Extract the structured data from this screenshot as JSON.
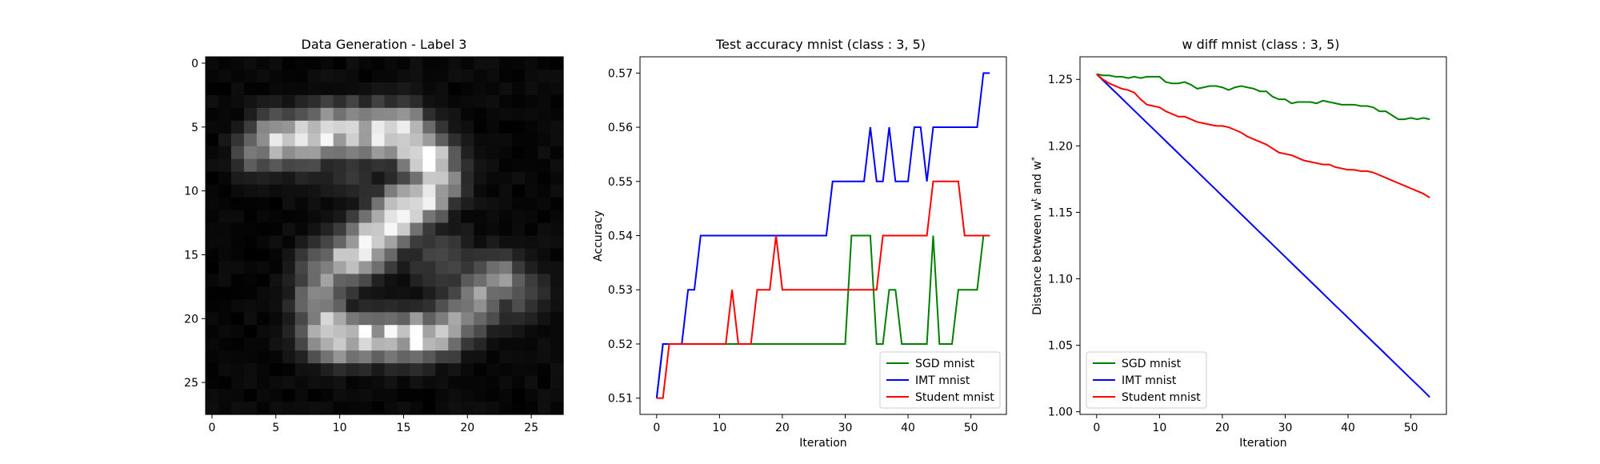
{
  "figure": {
    "background": "#ffffff"
  },
  "panels": [
    {
      "id": "image",
      "title": "Data Generation - Label 3"
    },
    {
      "id": "accuracy",
      "title": "Test accuracy mnist (class : 3, 5)",
      "xlabel": "Iteration",
      "ylabel": "Accuracy"
    },
    {
      "id": "wdiff",
      "title": "w diff mnist (class : 3, 5)",
      "xlabel": "Iteration",
      "ylabel": "Distance between w^t and w^*"
    }
  ],
  "chart_data": [
    {
      "type": "heatmap",
      "title": "Data Generation - Label 3",
      "colormap": "gray",
      "xlim": [
        -0.5,
        27.5
      ],
      "ylim": [
        27.5,
        -0.5
      ],
      "xticks": [
        0,
        5,
        10,
        15,
        20,
        25
      ],
      "yticks": [
        0,
        5,
        10,
        15,
        20,
        25
      ],
      "shape": [
        28,
        28
      ],
      "strokes": [
        [
          6,
          5,
          0.9,
          1.3
        ],
        [
          6,
          7,
          0.95,
          1.4
        ],
        [
          5.5,
          9,
          0.95,
          1.4
        ],
        [
          5.5,
          11,
          1.0,
          1.4
        ],
        [
          5.5,
          13,
          1.0,
          1.4
        ],
        [
          5.5,
          15,
          1.0,
          1.4
        ],
        [
          6.5,
          16,
          0.95,
          1.4
        ],
        [
          7.5,
          17,
          0.95,
          1.4
        ],
        [
          9,
          17.5,
          0.9,
          1.4
        ],
        [
          10.5,
          16.5,
          0.95,
          1.4
        ],
        [
          11.5,
          15,
          1.0,
          1.4
        ],
        [
          12.5,
          14,
          0.95,
          1.4
        ],
        [
          13.5,
          13,
          0.95,
          1.4
        ],
        [
          14.5,
          12,
          0.9,
          1.4
        ],
        [
          15.5,
          10.5,
          0.75,
          1.4
        ],
        [
          16.5,
          9,
          0.6,
          1.5
        ],
        [
          18,
          8.5,
          0.55,
          1.4
        ],
        [
          19.5,
          8.5,
          0.6,
          1.4
        ],
        [
          21,
          9,
          0.9,
          1.4
        ],
        [
          21.5,
          10,
          1.0,
          1.3
        ],
        [
          21.5,
          12,
          0.95,
          1.3
        ],
        [
          21.5,
          14,
          0.9,
          1.3
        ],
        [
          21.5,
          16,
          0.95,
          1.3
        ],
        [
          21,
          18,
          0.75,
          1.3
        ],
        [
          20,
          19.5,
          0.65,
          1.4
        ],
        [
          18.5,
          21,
          0.6,
          1.5
        ],
        [
          17,
          22.5,
          0.55,
          1.4
        ],
        [
          7,
          3.5,
          0.55,
          1.1
        ],
        [
          8.5,
          11,
          0.2,
          1.6
        ],
        [
          15.5,
          18,
          0.25,
          1.8
        ],
        [
          17,
          21,
          0.3,
          1.5
        ],
        [
          18,
          24,
          0.3,
          1.5
        ]
      ]
    },
    {
      "type": "line",
      "title": "Test accuracy mnist (class : 3, 5)",
      "xlabel": "Iteration",
      "ylabel": "Accuracy",
      "xlim": [
        -2.65,
        55.65
      ],
      "ylim": [
        0.507,
        0.573
      ],
      "xticks": [
        0,
        10,
        20,
        30,
        40,
        50
      ],
      "yticks": [
        0.51,
        0.52,
        0.53,
        0.54,
        0.55,
        0.56,
        0.57
      ],
      "ytick_labels": [
        "0.51",
        "0.52",
        "0.53",
        "0.54",
        "0.55",
        "0.56",
        "0.57"
      ],
      "legend": "lower-right",
      "series": [
        {
          "name": "SGD mnist",
          "color": "#008000",
          "values": [
            0.51,
            0.52,
            0.52,
            0.52,
            0.52,
            0.52,
            0.52,
            0.52,
            0.52,
            0.52,
            0.52,
            0.52,
            0.52,
            0.52,
            0.52,
            0.52,
            0.52,
            0.52,
            0.52,
            0.52,
            0.52,
            0.52,
            0.52,
            0.52,
            0.52,
            0.52,
            0.52,
            0.52,
            0.52,
            0.52,
            0.52,
            0.54,
            0.54,
            0.54,
            0.54,
            0.52,
            0.52,
            0.53,
            0.53,
            0.52,
            0.52,
            0.52,
            0.52,
            0.52,
            0.54,
            0.52,
            0.52,
            0.52,
            0.53,
            0.53,
            0.53,
            0.53,
            0.54,
            0.54
          ]
        },
        {
          "name": "IMT mnist",
          "color": "#0000ff",
          "values": [
            0.51,
            0.52,
            0.52,
            0.52,
            0.52,
            0.53,
            0.53,
            0.54,
            0.54,
            0.54,
            0.54,
            0.54,
            0.54,
            0.54,
            0.54,
            0.54,
            0.54,
            0.54,
            0.54,
            0.54,
            0.54,
            0.54,
            0.54,
            0.54,
            0.54,
            0.54,
            0.54,
            0.54,
            0.55,
            0.55,
            0.55,
            0.55,
            0.55,
            0.55,
            0.56,
            0.55,
            0.55,
            0.56,
            0.55,
            0.55,
            0.55,
            0.56,
            0.56,
            0.55,
            0.56,
            0.56,
            0.56,
            0.56,
            0.56,
            0.56,
            0.56,
            0.56,
            0.57,
            0.57
          ]
        },
        {
          "name": "Student mnist",
          "color": "#ff0000",
          "values": [
            0.51,
            0.51,
            0.52,
            0.52,
            0.52,
            0.52,
            0.52,
            0.52,
            0.52,
            0.52,
            0.52,
            0.52,
            0.53,
            0.52,
            0.52,
            0.52,
            0.53,
            0.53,
            0.53,
            0.54,
            0.53,
            0.53,
            0.53,
            0.53,
            0.53,
            0.53,
            0.53,
            0.53,
            0.53,
            0.53,
            0.53,
            0.53,
            0.53,
            0.53,
            0.53,
            0.53,
            0.54,
            0.54,
            0.54,
            0.54,
            0.54,
            0.54,
            0.54,
            0.54,
            0.55,
            0.55,
            0.55,
            0.55,
            0.55,
            0.54,
            0.54,
            0.54,
            0.54,
            0.54
          ]
        }
      ]
    },
    {
      "type": "line",
      "title": "w diff mnist (class : 3, 5)",
      "xlabel": "Iteration",
      "ylabel": "Distance between w^t and w^*",
      "xlim": [
        -2.65,
        55.65
      ],
      "ylim": [
        0.998,
        1.267
      ],
      "xticks": [
        0,
        10,
        20,
        30,
        40,
        50
      ],
      "yticks": [
        1.0,
        1.05,
        1.1,
        1.15,
        1.2,
        1.25
      ],
      "ytick_labels": [
        "1.00",
        "1.05",
        "1.10",
        "1.15",
        "1.20",
        "1.25"
      ],
      "legend": "lower-left",
      "series": [
        {
          "name": "SGD mnist",
          "color": "#008000",
          "values": [
            1.254,
            1.253,
            1.253,
            1.252,
            1.252,
            1.251,
            1.252,
            1.251,
            1.252,
            1.252,
            1.252,
            1.248,
            1.247,
            1.247,
            1.248,
            1.246,
            1.243,
            1.244,
            1.245,
            1.245,
            1.244,
            1.242,
            1.244,
            1.245,
            1.244,
            1.243,
            1.241,
            1.241,
            1.237,
            1.235,
            1.235,
            1.232,
            1.233,
            1.233,
            1.233,
            1.232,
            1.234,
            1.233,
            1.232,
            1.231,
            1.231,
            1.231,
            1.23,
            1.23,
            1.229,
            1.226,
            1.226,
            1.223,
            1.22,
            1.22,
            1.221,
            1.22,
            1.221,
            1.22
          ]
        },
        {
          "name": "IMT mnist",
          "color": "#0000ff",
          "values": [
            1.254,
            1.2494,
            1.2448,
            1.2403,
            1.2357,
            1.2311,
            1.2265,
            1.2219,
            1.2173,
            1.2128,
            1.2082,
            1.2036,
            1.199,
            1.1944,
            1.1898,
            1.1853,
            1.1807,
            1.1761,
            1.1715,
            1.1669,
            1.1623,
            1.1578,
            1.1532,
            1.1486,
            1.144,
            1.1394,
            1.1348,
            1.1303,
            1.1257,
            1.1211,
            1.1165,
            1.1119,
            1.1073,
            1.1028,
            1.0982,
            1.0936,
            1.089,
            1.0844,
            1.0798,
            1.0753,
            1.0707,
            1.0661,
            1.0615,
            1.0569,
            1.0523,
            1.0478,
            1.0432,
            1.0386,
            1.034,
            1.0294,
            1.0248,
            1.0203,
            1.0157,
            1.011
          ]
        },
        {
          "name": "Student mnist",
          "color": "#ff0000",
          "values": [
            1.254,
            1.25,
            1.247,
            1.245,
            1.243,
            1.242,
            1.24,
            1.235,
            1.231,
            1.23,
            1.229,
            1.226,
            1.224,
            1.222,
            1.222,
            1.22,
            1.218,
            1.217,
            1.216,
            1.215,
            1.215,
            1.214,
            1.212,
            1.21,
            1.207,
            1.205,
            1.203,
            1.201,
            1.198,
            1.195,
            1.194,
            1.193,
            1.191,
            1.189,
            1.188,
            1.187,
            1.186,
            1.186,
            1.184,
            1.183,
            1.182,
            1.182,
            1.181,
            1.181,
            1.18,
            1.178,
            1.176,
            1.174,
            1.172,
            1.17,
            1.168,
            1.166,
            1.164,
            1.161
          ]
        }
      ]
    }
  ]
}
